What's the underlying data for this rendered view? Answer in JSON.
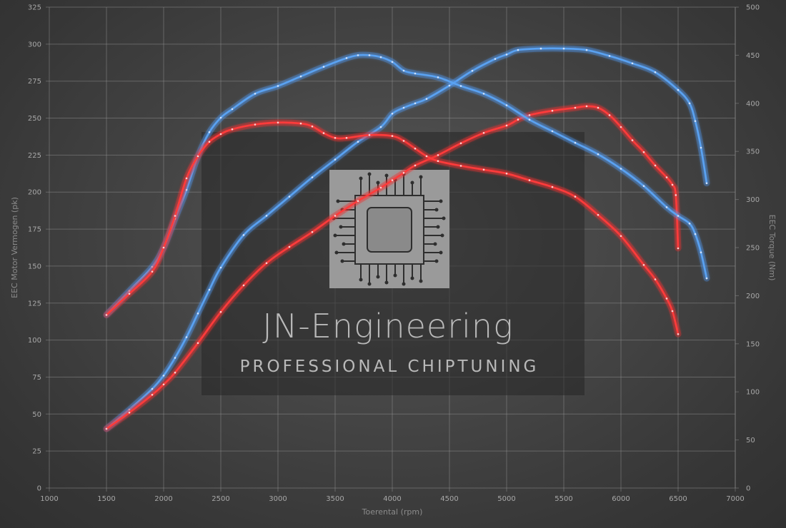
{
  "chart_data": {
    "type": "line",
    "xlabel": "Toerental (rpm)",
    "ylabel_left": "EEC Motor Vermogen (pk)",
    "ylabel_right": "EEC Torque (Nm)",
    "xlim": [
      1000,
      7000
    ],
    "ylim_left": [
      0,
      325
    ],
    "ylim_right": [
      0,
      500
    ],
    "x_ticks": [
      1000,
      1500,
      2000,
      2500,
      3000,
      3500,
      4000,
      4500,
      5000,
      5500,
      6000,
      6500,
      7000
    ],
    "y_ticks_left": [
      0,
      25,
      50,
      75,
      100,
      125,
      150,
      175,
      200,
      225,
      250,
      275,
      300,
      325
    ],
    "y_ticks_right": [
      0,
      50,
      100,
      150,
      200,
      250,
      300,
      350,
      400,
      450,
      500
    ],
    "grid": true,
    "series": [
      {
        "axis": "left",
        "color": "#4a90e8",
        "x": [
          1500,
          1700,
          1900,
          2000,
          2100,
          2200,
          2300,
          2400,
          2500,
          2700,
          2900,
          3100,
          3300,
          3500,
          3700,
          3900,
          4000,
          4100,
          4200,
          4300,
          4500,
          4700,
          4900,
          5000,
          5100,
          5300,
          5500,
          5700,
          5900,
          6100,
          6300,
          6500,
          6600,
          6650,
          6700,
          6750
        ],
        "y": [
          40,
          53,
          67,
          76,
          88,
          102,
          118,
          134,
          149,
          171,
          184,
          197,
          210,
          222,
          234,
          244,
          253,
          257,
          260,
          263,
          272,
          282,
          290,
          293,
          296,
          297,
          297,
          296,
          292,
          287,
          281,
          269,
          260,
          248,
          230,
          206
        ]
      },
      {
        "axis": "left",
        "color": "#e82a2a",
        "x": [
          1500,
          1700,
          1900,
          2000,
          2100,
          2300,
          2500,
          2700,
          2900,
          3100,
          3300,
          3500,
          3700,
          3900,
          4000,
          4100,
          4200,
          4400,
          4600,
          4800,
          5000,
          5100,
          5200,
          5400,
          5600,
          5700,
          5800,
          5900,
          6000,
          6100,
          6200,
          6300,
          6400,
          6450,
          6480,
          6500
        ],
        "y": [
          40,
          51,
          63,
          70,
          78,
          98,
          119,
          137,
          152,
          163,
          173,
          184,
          194,
          203,
          208,
          213,
          218,
          225,
          233,
          240,
          245,
          249,
          252,
          255,
          257,
          258,
          257,
          252,
          244,
          235,
          227,
          218,
          210,
          205,
          198,
          162
        ]
      },
      {
        "axis": "right",
        "color": "#4a90e8",
        "x": [
          1500,
          1700,
          1900,
          2000,
          2100,
          2200,
          2300,
          2400,
          2500,
          2600,
          2800,
          3000,
          3200,
          3400,
          3600,
          3700,
          3800,
          3900,
          4000,
          4100,
          4200,
          4400,
          4600,
          4800,
          5000,
          5200,
          5400,
          5600,
          5800,
          6000,
          6200,
          6400,
          6500,
          6600,
          6650,
          6700,
          6750
        ],
        "y": [
          180,
          205,
          230,
          250,
          280,
          310,
          345,
          370,
          385,
          394,
          410,
          418,
          428,
          438,
          447,
          450,
          450,
          448,
          443,
          434,
          431,
          427,
          418,
          410,
          398,
          383,
          371,
          359,
          347,
          332,
          314,
          292,
          283,
          275,
          264,
          245,
          218
        ]
      },
      {
        "axis": "right",
        "color": "#e82a2a",
        "x": [
          1500,
          1700,
          1900,
          2000,
          2100,
          2200,
          2300,
          2400,
          2500,
          2600,
          2800,
          3000,
          3200,
          3300,
          3400,
          3500,
          3600,
          3800,
          4000,
          4100,
          4200,
          4300,
          4400,
          4600,
          4800,
          5000,
          5200,
          5400,
          5600,
          5800,
          6000,
          6200,
          6300,
          6400,
          6450,
          6500
        ],
        "y": [
          180,
          202,
          225,
          250,
          283,
          322,
          345,
          360,
          368,
          373,
          378,
          380,
          379,
          376,
          369,
          364,
          364,
          367,
          366,
          361,
          353,
          345,
          340,
          335,
          331,
          327,
          320,
          313,
          303,
          284,
          262,
          232,
          217,
          197,
          184,
          160
        ]
      }
    ]
  },
  "watermark": {
    "title": "JN-Engineering",
    "subtitle": "PROFESSIONAL CHIPTUNING"
  }
}
